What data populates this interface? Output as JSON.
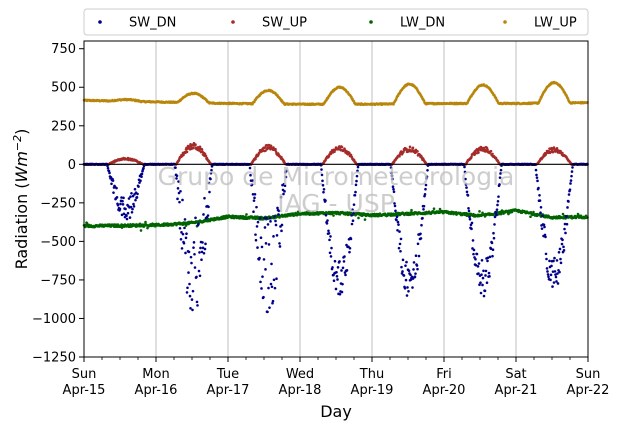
{
  "chart_data": {
    "type": "scatter",
    "xlabel": "Day",
    "ylabel_main": "Radiation (",
    "ylabel_unit": "Wm",
    "ylabel_exp": "−2",
    "ylabel_close": ")",
    "ylim": [
      -1250,
      800
    ],
    "xlim": [
      0,
      7
    ],
    "yticks": [
      -1250,
      -1000,
      -750,
      -500,
      -250,
      0,
      250,
      500,
      750
    ],
    "ytick_labels": [
      "−1250",
      "−1000",
      "−750",
      "−500",
      "−250",
      "0",
      "250",
      "500",
      "750"
    ],
    "xticks": [
      {
        "day": "Sun",
        "date": "Apr-15"
      },
      {
        "day": "Mon",
        "date": "Apr-16"
      },
      {
        "day": "Tue",
        "date": "Apr-17"
      },
      {
        "day": "Wed",
        "date": "Apr-18"
      },
      {
        "day": "Thu",
        "date": "Apr-19"
      },
      {
        "day": "Fri",
        "date": "Apr-20"
      },
      {
        "day": "Sat",
        "date": "Apr-21"
      },
      {
        "day": "Sun",
        "date": "Apr-22"
      }
    ],
    "grid": "vertical at day ticks",
    "zero_line": true,
    "legend_position": "top",
    "watermark_line1": "Grupo de Micrometeorologia",
    "watermark_line2": "IAG - USP",
    "series": [
      {
        "name": "SW_DN",
        "color": "#00008b",
        "daily_min": [
          -350,
          -970,
          -960,
          -845,
          -870,
          -860,
          -820
        ],
        "noon": [
          0.58,
          0.52,
          0.56,
          0.55,
          0.52,
          0.54,
          0.53
        ],
        "half_width": [
          0.26,
          0.26,
          0.26,
          0.26,
          0.26,
          0.26,
          0.26
        ]
      },
      {
        "name": "SW_UP",
        "color": "#a52a2a",
        "daily_max": [
          40,
          130,
          120,
          115,
          110,
          110,
          105
        ],
        "noon": [
          0.58,
          0.52,
          0.56,
          0.55,
          0.52,
          0.54,
          0.53
        ],
        "half_width": [
          0.24,
          0.24,
          0.24,
          0.24,
          0.24,
          0.24,
          0.24
        ]
      },
      {
        "name": "LW_DN",
        "color": "#006400",
        "keypoints_x": [
          0,
          1,
          1.5,
          2,
          2.5,
          3,
          3.5,
          4,
          4.5,
          5,
          5.5,
          6,
          6.5,
          7
        ],
        "keypoints_y": [
          -400,
          -395,
          -380,
          -340,
          -350,
          -320,
          -315,
          -330,
          -320,
          -310,
          -335,
          -300,
          -345,
          -340
        ]
      },
      {
        "name": "LW_UP",
        "color": "#b8860b",
        "base_x": [
          0,
          1,
          2,
          3,
          4,
          5,
          6,
          7
        ],
        "base_y": [
          415,
          405,
          395,
          390,
          390,
          395,
          395,
          400
        ],
        "daily_max": [
          420,
          460,
          480,
          500,
          520,
          515,
          530
        ]
      }
    ]
  }
}
